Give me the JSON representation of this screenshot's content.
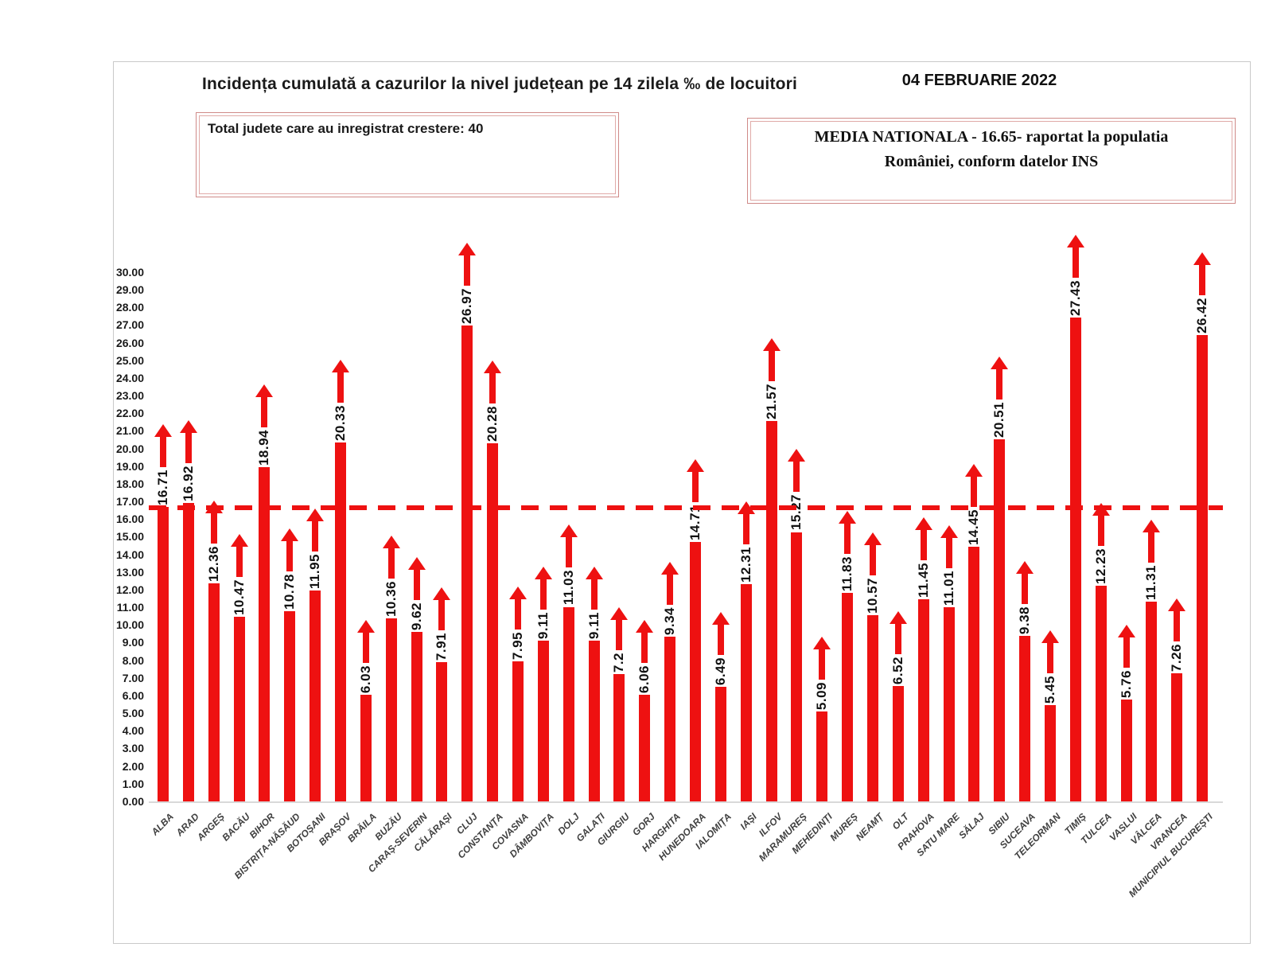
{
  "page_background": "#ffffff",
  "chart_data": {
    "type": "bar",
    "title": "Incidența cumulată a cazurilor la nivel județean pe 14 zilela ‰ de locuitori",
    "date_label": "04 FEBRUARIE 2022",
    "note_total": "Total judete care au inregistrat crestere: 40",
    "note_media_line1": "MEDIA NATIONALA - 16.65-  raportat la populatia",
    "note_media_line2": "României, conform datelor INS",
    "national_average": 16.65,
    "bar_color": "#ee1111",
    "note_border_color": "#cf8a88",
    "ylim": [
      0,
      30
    ],
    "ytick_step": 1,
    "ytick_decimals": 2,
    "grid": false,
    "legend": null,
    "xlabel": "",
    "ylabel": "",
    "categories": [
      "ALBA",
      "ARAD",
      "ARGEȘ",
      "BACĂU",
      "BIHOR",
      "BISTRIȚA-NĂSĂUD",
      "BOTOȘANI",
      "BRAȘOV",
      "BRĂILA",
      "BUZĂU",
      "CARAȘ-SEVERIN",
      "CĂLĂRAȘI",
      "CLUJ",
      "CONSTANȚA",
      "COVASNA",
      "DÂMBOVIȚA",
      "DOLJ",
      "GALAȚI",
      "GIURGIU",
      "GORJ",
      "HARGHITA",
      "HUNEDOARA",
      "IALOMIȚA",
      "IAȘI",
      "ILFOV",
      "MARAMUREȘ",
      "MEHEDINȚI",
      "MUREȘ",
      "NEAMȚ",
      "OLT",
      "PRAHOVA",
      "SATU MARE",
      "SĂLAJ",
      "SIBIU",
      "SUCEAVA",
      "TELEORMAN",
      "TIMIȘ",
      "TULCEA",
      "VASLUI",
      "VÂLCEA",
      "VRANCEA",
      "MUNICIPIUL BUCUREȘTI"
    ],
    "values": [
      16.71,
      16.92,
      12.36,
      10.47,
      18.94,
      10.78,
      11.95,
      20.33,
      6.03,
      10.36,
      9.62,
      7.91,
      26.97,
      20.28,
      7.95,
      9.11,
      11.03,
      9.11,
      7.2,
      6.06,
      9.34,
      14.71,
      6.49,
      12.31,
      21.57,
      15.27,
      5.09,
      11.83,
      10.57,
      6.52,
      11.45,
      11.01,
      14.45,
      20.51,
      9.38,
      5.45,
      27.43,
      12.23,
      5.76,
      11.31,
      7.26,
      26.42
    ]
  }
}
